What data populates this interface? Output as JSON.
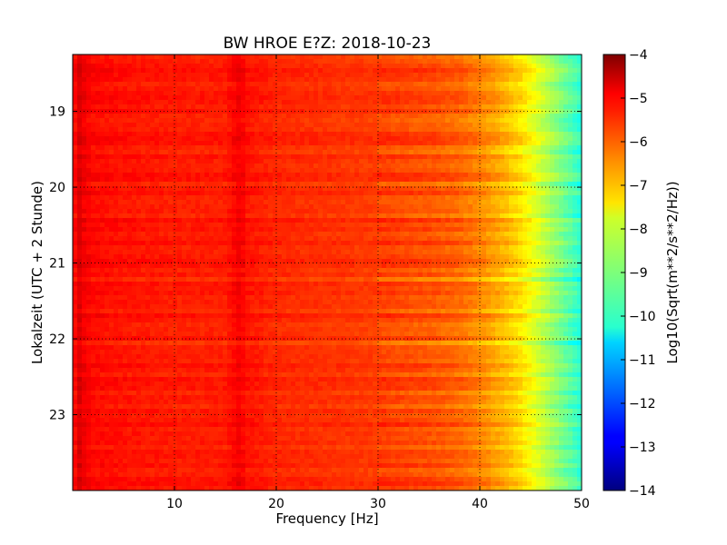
{
  "chart_data": {
    "type": "heatmap",
    "title": "BW HROE E?Z: 2018-10-23",
    "xlabel": "Frequency [Hz]",
    "ylabel": "Lokalzeit (UTC + 2 Stunde)",
    "xlim": [
      0,
      50
    ],
    "ylim": [
      24,
      18.25
    ],
    "x_ticks": [
      10,
      20,
      30,
      40,
      50
    ],
    "x_tick_labels": [
      "10",
      "20",
      "30",
      "40",
      "50"
    ],
    "y_ticks": [
      19,
      20,
      21,
      22,
      23
    ],
    "y_tick_labels": [
      "19",
      "20",
      "21",
      "22",
      "23"
    ],
    "grid": true,
    "colorbar": {
      "label": "Log10(Sqrt(m**2/s**2/Hz))",
      "range": [
        -14,
        -4
      ],
      "ticks": [
        -4,
        -5,
        -6,
        -7,
        -8,
        -9,
        -10,
        -11,
        -12,
        -13,
        -14
      ],
      "tick_labels": [
        "−4",
        "−5",
        "−6",
        "−7",
        "−8",
        "−9",
        "−10",
        "−11",
        "−12",
        "−13",
        "−14"
      ],
      "colormap": "jet"
    },
    "spectrum_profile": {
      "frequency_hz": [
        0,
        0.5,
        1,
        2,
        5,
        10,
        15,
        16.5,
        17,
        20,
        25,
        30,
        35,
        38,
        40,
        42,
        44,
        45,
        46,
        47,
        48,
        49,
        50
      ],
      "log_amplitude": [
        -5.7,
        -4.8,
        -5.1,
        -5.3,
        -5.4,
        -5.5,
        -5.5,
        -5.1,
        -5.4,
        -5.6,
        -5.7,
        -5.8,
        -6.0,
        -6.2,
        -6.5,
        -6.9,
        -7.4,
        -7.8,
        -8.2,
        -8.6,
        -9.0,
        -9.4,
        -9.8
      ]
    },
    "notable_lines_hz": [
      16.7
    ]
  }
}
